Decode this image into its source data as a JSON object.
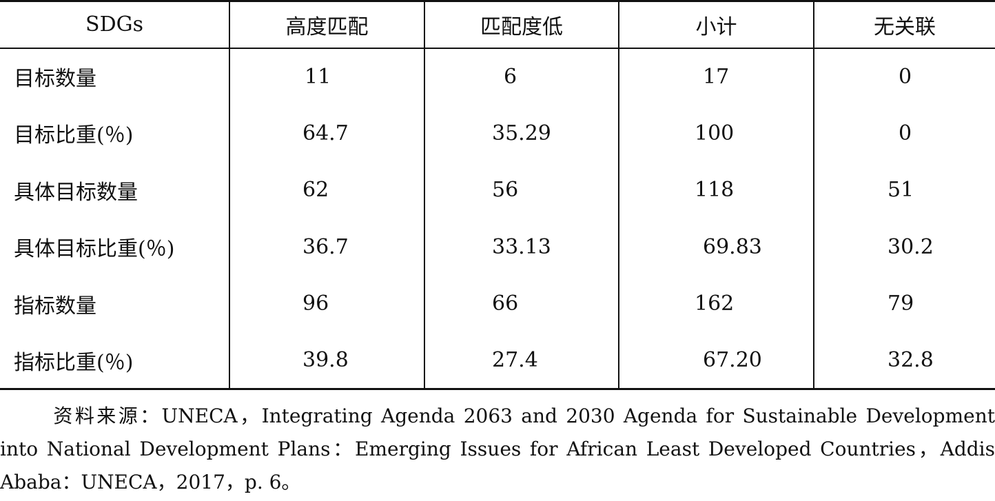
{
  "table": {
    "headers": [
      "SDGs",
      "高度匹配",
      "匹配度低",
      "小计",
      "无关联"
    ],
    "rows": [
      [
        "目标数量",
        "11",
        "6",
        "17",
        "0"
      ],
      [
        "目标比重(％)",
        "64.7",
        "35.29",
        "100",
        "0"
      ],
      [
        "具体目标数量",
        "62",
        "56",
        "118",
        "51"
      ],
      [
        "具体目标比重(％)",
        "36.7",
        "33.13",
        "69.83",
        "30.2"
      ],
      [
        "指标数量",
        "96",
        "66",
        "162",
        "79"
      ],
      [
        "指标比重(％)",
        "39.8",
        "27.4",
        "67.20",
        "32.8"
      ]
    ]
  },
  "source": {
    "text": "资料来源：UNECA，Integrating Agenda 2063 and 2030 Agenda for Sustainable Development into National Development Plans：Emerging Issues for African Least Developed Countries，Addis Ababa：UNECA，2017，p. 6。"
  }
}
